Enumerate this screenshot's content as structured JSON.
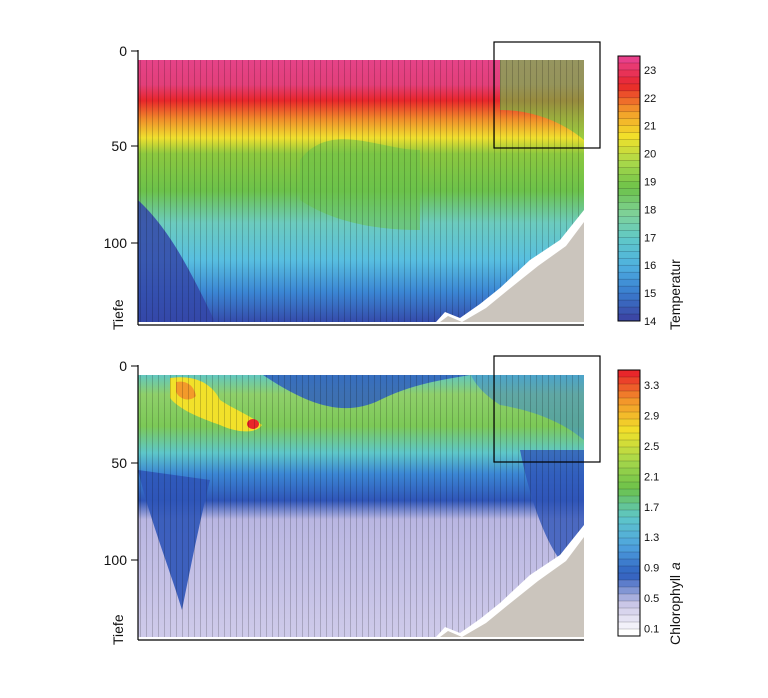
{
  "chart_data": [
    {
      "type": "heatmap",
      "ylabel": "Tiefe",
      "yticks": [
        "0",
        "50",
        "100"
      ],
      "ylim": [
        0,
        140
      ],
      "colorbar": {
        "label": "Temperatur",
        "ticks": [
          "23",
          "22",
          "21",
          "20",
          "19",
          "18",
          "17",
          "16",
          "15",
          "14"
        ],
        "range": [
          14,
          23.5
        ]
      },
      "layers": [
        {
          "top": 0,
          "bottom": 25,
          "value": 23,
          "color": "#e8408a"
        },
        {
          "top": 18,
          "bottom": 38,
          "value": 21.5,
          "color": "#e8262a"
        },
        {
          "top": 33,
          "bottom": 48,
          "value": 20,
          "color": "#f2e12a"
        },
        {
          "top": 42,
          "bottom": 75,
          "value": 18,
          "color": "#6cc24a"
        },
        {
          "top": 68,
          "bottom": 110,
          "value": 16.5,
          "color": "#5ec7c9"
        },
        {
          "top": 105,
          "bottom": 140,
          "value": 15,
          "color": "#3a7fd0"
        }
      ],
      "highlight_box_depth": [
        0,
        50
      ]
    },
    {
      "type": "heatmap",
      "ylabel": "Tiefe",
      "yticks": [
        "0",
        "50",
        "100"
      ],
      "ylim": [
        0,
        140
      ],
      "colorbar": {
        "label": "Chlorophyll a",
        "label_plain": "Chlorophyll",
        "label_italic": "a",
        "ticks": [
          "3.3",
          "2.9",
          "2.5",
          "2.1",
          "1.7",
          "1.3",
          "0.9",
          "0.5",
          "0.1"
        ],
        "range": [
          0,
          3.5
        ]
      },
      "layers": [
        {
          "top": 0,
          "bottom": 18,
          "value": 1.3,
          "color": "#8fcf6a"
        },
        {
          "top": 14,
          "bottom": 40,
          "value": 1.5,
          "color": "#6cc24a"
        },
        {
          "top": 36,
          "bottom": 52,
          "value": 0.9,
          "color": "#5ec7c9"
        },
        {
          "top": 48,
          "bottom": 72,
          "value": 0.5,
          "color": "#2f5fbf"
        },
        {
          "top": 68,
          "bottom": 140,
          "value": 0.1,
          "color": "#c9c5e6"
        }
      ],
      "highlight_box_depth": [
        0,
        50
      ]
    }
  ],
  "colors": {
    "seafloor": "#cbc5bd",
    "temperature_scale": [
      "#3b47a6",
      "#3a7fd0",
      "#4fb0e0",
      "#5ec7c9",
      "#7fd29a",
      "#6cc24a",
      "#a9d84a",
      "#f2e12a",
      "#f39a2a",
      "#e8262a",
      "#e8408a"
    ],
    "chlorophyll_scale": [
      "#ffffff",
      "#c9c5e6",
      "#2f5fbf",
      "#4fa3df",
      "#5ec7c9",
      "#6cc24a",
      "#a9d84a",
      "#f2e12a",
      "#f39a2a",
      "#e8262a"
    ]
  }
}
